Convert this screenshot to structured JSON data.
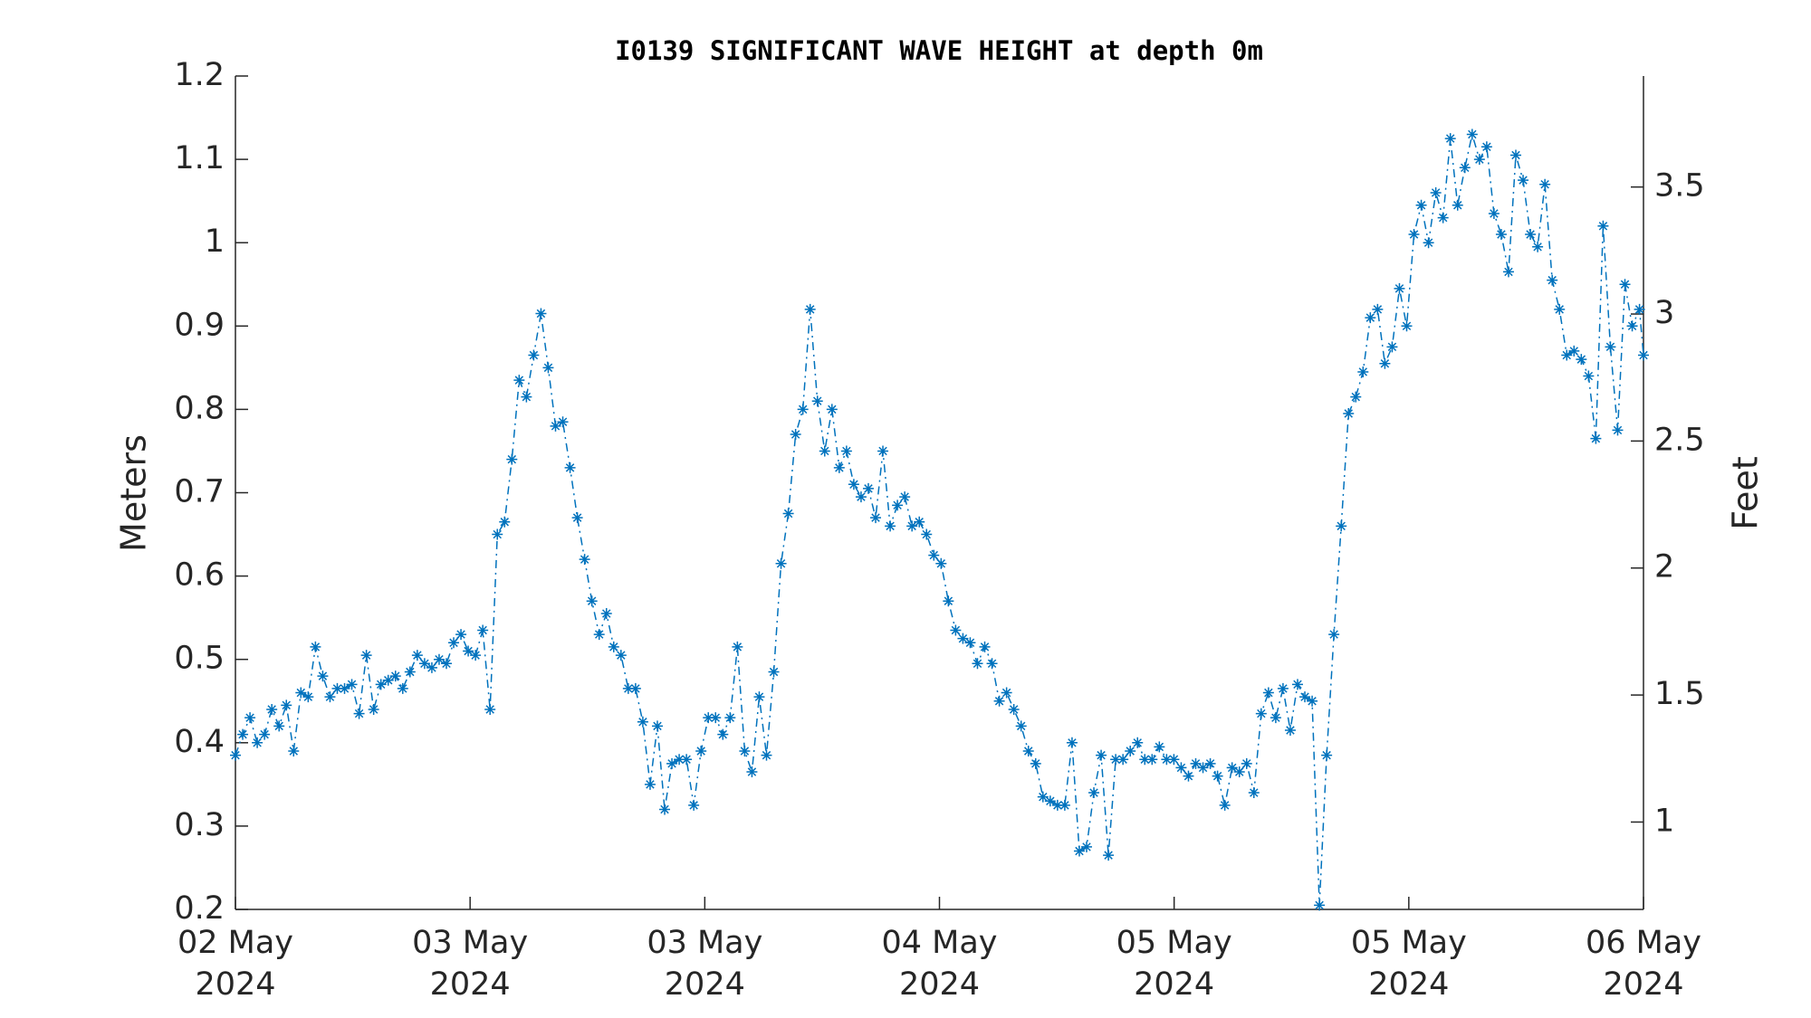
{
  "chart_data": {
    "type": "line",
    "title": "I0139 SIGNIFICANT WAVE HEIGHT at depth 0m",
    "ylabel": "Meters",
    "y2label": "Feet",
    "xlim": [
      0,
      6
    ],
    "xticks": [
      {
        "value": 0,
        "label": "02 May\n2024"
      },
      {
        "value": 1,
        "label": "03 May\n2024"
      },
      {
        "value": 2,
        "label": "03 May\n2024"
      },
      {
        "value": 3,
        "label": "04 May\n2024"
      },
      {
        "value": 4,
        "label": "05 May\n2024"
      },
      {
        "value": 5,
        "label": "05 May\n2024"
      },
      {
        "value": 6,
        "label": "06 May\n2024"
      }
    ],
    "ylim": [
      0.2,
      1.2
    ],
    "yticks": [
      0.2,
      0.3,
      0.4,
      0.5,
      0.6,
      0.7,
      0.8,
      0.9,
      1,
      1.1,
      1.2
    ],
    "y2lim": [
      0.656,
      3.937
    ],
    "y2ticks": [
      1,
      1.5,
      2,
      2.5,
      3,
      3.5
    ],
    "grid": false,
    "series": [
      {
        "color": "#0072bd",
        "x": [
          0,
          0.031,
          0.062,
          0.093,
          0.124,
          0.155,
          0.186,
          0.217,
          0.248,
          0.279,
          0.31,
          0.341,
          0.372,
          0.403,
          0.434,
          0.465,
          0.496,
          0.527,
          0.558,
          0.589,
          0.62,
          0.651,
          0.682,
          0.713,
          0.744,
          0.775,
          0.806,
          0.837,
          0.868,
          0.899,
          0.93,
          0.961,
          0.992,
          1.023,
          1.054,
          1.085,
          1.116,
          1.147,
          1.178,
          1.209,
          1.24,
          1.271,
          1.302,
          1.333,
          1.364,
          1.395,
          1.426,
          1.457,
          1.488,
          1.519,
          1.55,
          1.581,
          1.612,
          1.643,
          1.674,
          1.705,
          1.736,
          1.767,
          1.798,
          1.829,
          1.86,
          1.891,
          1.922,
          1.953,
          1.984,
          2.015,
          2.046,
          2.077,
          2.108,
          2.139,
          2.17,
          2.201,
          2.232,
          2.263,
          2.294,
          2.325,
          2.356,
          2.387,
          2.418,
          2.449,
          2.48,
          2.511,
          2.542,
          2.573,
          2.604,
          2.635,
          2.666,
          2.697,
          2.728,
          2.759,
          2.79,
          2.821,
          2.852,
          2.883,
          2.914,
          2.945,
          2.976,
          3.007,
          3.038,
          3.069,
          3.1,
          3.131,
          3.162,
          3.193,
          3.224,
          3.255,
          3.286,
          3.317,
          3.348,
          3.379,
          3.41,
          3.441,
          3.472,
          3.503,
          3.534,
          3.565,
          3.596,
          3.627,
          3.658,
          3.689,
          3.72,
          3.751,
          3.782,
          3.813,
          3.844,
          3.875,
          3.906,
          3.937,
          3.968,
          3.999,
          4.03,
          4.061,
          4.092,
          4.123,
          4.154,
          4.185,
          4.216,
          4.247,
          4.278,
          4.309,
          4.34,
          4.371,
          4.402,
          4.433,
          4.464,
          4.495,
          4.526,
          4.557,
          4.588,
          4.619,
          4.65,
          4.681,
          4.712,
          4.743,
          4.774,
          4.805,
          4.836,
          4.867,
          4.898,
          4.929,
          4.96,
          4.991,
          5.022,
          5.053,
          5.084,
          5.115,
          5.146,
          5.177,
          5.208,
          5.239,
          5.27,
          5.301,
          5.332,
          5.363,
          5.394,
          5.425,
          5.456,
          5.487,
          5.518,
          5.549,
          5.58,
          5.611,
          5.642,
          5.673,
          5.704,
          5.735,
          5.766,
          5.797,
          5.828,
          5.859,
          5.89,
          5.921,
          5.952,
          5.983,
          6
        ],
        "values": [
          0.385,
          0.41,
          0.43,
          0.4,
          0.41,
          0.44,
          0.42,
          0.445,
          0.39,
          0.46,
          0.455,
          0.515,
          0.48,
          0.455,
          0.465,
          0.465,
          0.47,
          0.435,
          0.505,
          0.44,
          0.47,
          0.475,
          0.48,
          0.465,
          0.485,
          0.505,
          0.495,
          0.49,
          0.5,
          0.495,
          0.52,
          0.53,
          0.51,
          0.505,
          0.535,
          0.44,
          0.65,
          0.665,
          0.74,
          0.835,
          0.815,
          0.865,
          0.915,
          0.85,
          0.78,
          0.785,
          0.73,
          0.67,
          0.62,
          0.57,
          0.53,
          0.555,
          0.515,
          0.505,
          0.465,
          0.465,
          0.425,
          0.35,
          0.42,
          0.32,
          0.375,
          0.38,
          0.38,
          0.325,
          0.39,
          0.43,
          0.43,
          0.41,
          0.43,
          0.515,
          0.39,
          0.365,
          0.455,
          0.385,
          0.485,
          0.615,
          0.675,
          0.77,
          0.8,
          0.92,
          0.81,
          0.75,
          0.8,
          0.73,
          0.75,
          0.71,
          0.695,
          0.705,
          0.67,
          0.75,
          0.66,
          0.685,
          0.695,
          0.66,
          0.665,
          0.65,
          0.625,
          0.615,
          0.57,
          0.535,
          0.525,
          0.52,
          0.495,
          0.515,
          0.495,
          0.45,
          0.46,
          0.44,
          0.42,
          0.39,
          0.375,
          0.335,
          0.33,
          0.325,
          0.325,
          0.4,
          0.27,
          0.275,
          0.34,
          0.385,
          0.265,
          0.38,
          0.38,
          0.39,
          0.4,
          0.38,
          0.38,
          0.395,
          0.38,
          0.38,
          0.37,
          0.36,
          0.375,
          0.37,
          0.375,
          0.36,
          0.325,
          0.37,
          0.365,
          0.375,
          0.34,
          0.435,
          0.46,
          0.43,
          0.465,
          0.415,
          0.47,
          0.455,
          0.45,
          0.205,
          0.385,
          0.53,
          0.66,
          0.795,
          0.815,
          0.845,
          0.91,
          0.92,
          0.855,
          0.875,
          0.945,
          0.9,
          1.01,
          1.045,
          1.0,
          1.06,
          1.03,
          1.125,
          1.045,
          1.09,
          1.13,
          1.1,
          1.115,
          1.035,
          1.01,
          0.965,
          1.105,
          1.075,
          1.01,
          0.995,
          1.07,
          0.955,
          0.92,
          0.865,
          0.87,
          0.86,
          0.84,
          0.765,
          1.02,
          0.875,
          0.775,
          0.95,
          0.9,
          0.92,
          0.865
        ]
      }
    ]
  }
}
